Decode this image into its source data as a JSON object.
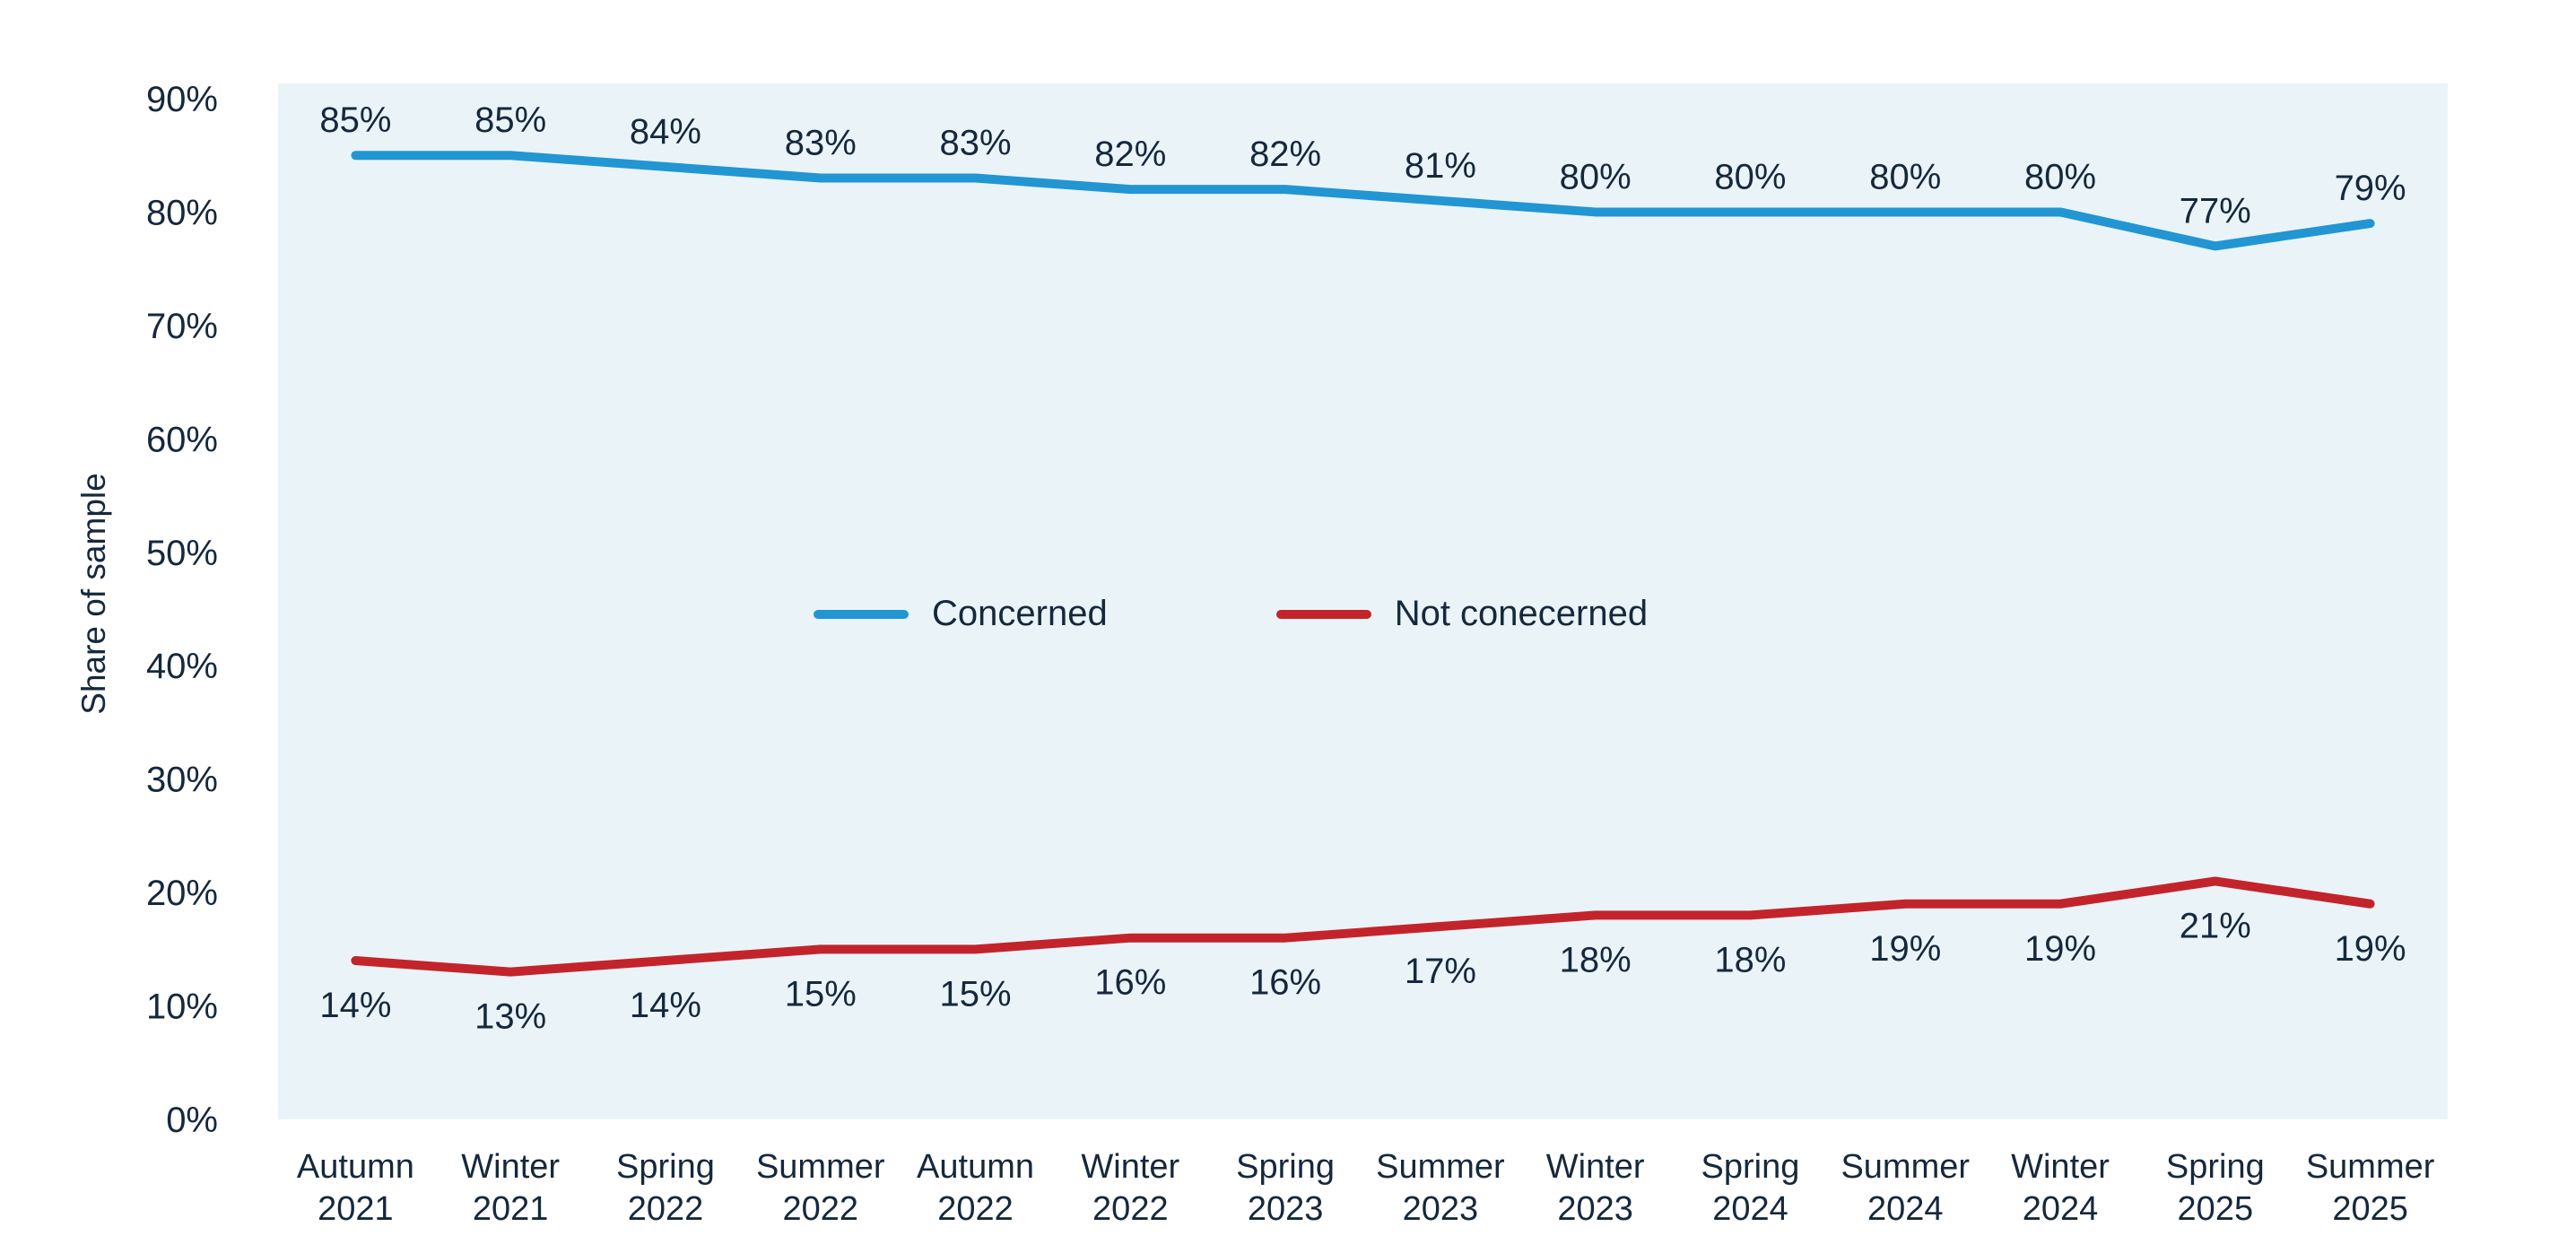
{
  "chart_data": {
    "type": "line",
    "title": "",
    "xlabel": "",
    "ylabel": "Share of sample",
    "categories": [
      "Autumn 2021",
      "Winter 2021",
      "Spring 2022",
      "Summer 2022",
      "Autumn 2022",
      "Winter 2022",
      "Spring 2023",
      "Summer 2023",
      "Winter 2023",
      "Spring 2024",
      "Summer 2024",
      "Winter 2024",
      "Spring 2025",
      "Summer 2025"
    ],
    "series": [
      {
        "name": "Concerned",
        "color": "#2196d3",
        "values": [
          85,
          85,
          84,
          83,
          83,
          82,
          82,
          81,
          80,
          80,
          80,
          80,
          77,
          79
        ],
        "data_label_position": "above"
      },
      {
        "name": "Not conecerned",
        "color": "#c3242b",
        "values": [
          14,
          13,
          14,
          15,
          15,
          16,
          16,
          17,
          18,
          18,
          19,
          19,
          21,
          19
        ],
        "data_label_position": "below"
      }
    ],
    "yticks": [
      {
        "value": 0,
        "label": "0%"
      },
      {
        "value": 10,
        "label": "10%"
      },
      {
        "value": 20,
        "label": "20%"
      },
      {
        "value": 30,
        "label": "30%"
      },
      {
        "value": 40,
        "label": "40%"
      },
      {
        "value": 50,
        "label": "50%"
      },
      {
        "value": 60,
        "label": "60%"
      },
      {
        "value": 70,
        "label": "70%"
      },
      {
        "value": 80,
        "label": "80%"
      },
      {
        "value": 90,
        "label": "90%"
      }
    ],
    "ylim": [
      0,
      91
    ],
    "data_label_suffix": "%",
    "grid": false,
    "legend_position": "center-middle",
    "plot_background": "#eaf4f8",
    "text_color": "#16283c"
  }
}
